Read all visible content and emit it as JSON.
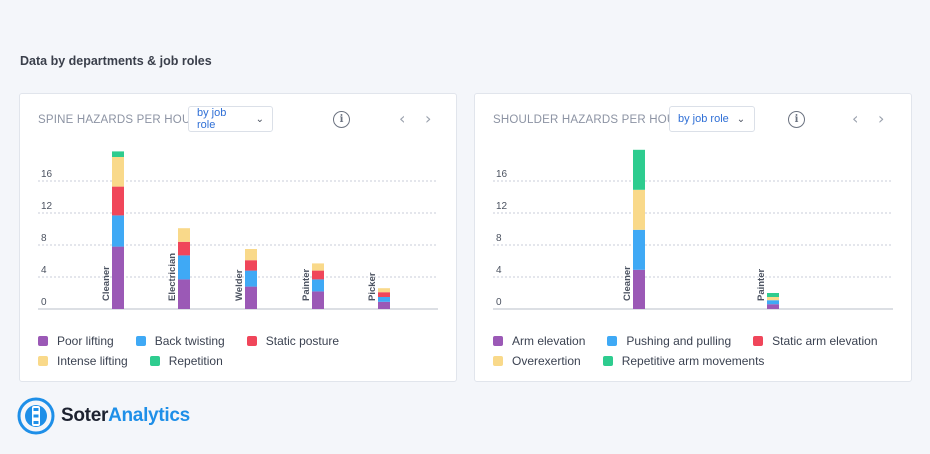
{
  "section": {
    "title": "Data by departments & job roles"
  },
  "panels": [
    {
      "title": "SPINE HAZARDS PER HOUR",
      "dropdown": "by job role",
      "info_icon": "info-icon",
      "prev_icon": "chevron-left-icon",
      "next_icon": "chevron-right-icon",
      "legend": [
        "Poor lifting",
        "Back twisting",
        "Static posture",
        "Intense lifting",
        "Repetition"
      ]
    },
    {
      "title": "SHOULDER HAZARDS PER HOUR",
      "dropdown": "by job role",
      "info_icon": "info-icon",
      "prev_icon": "chevron-left-icon",
      "next_icon": "chevron-right-icon",
      "legend": [
        "Arm elevation",
        "Pushing and pulling",
        "Static arm elevation",
        "Overexertion",
        "Repetitive arm movements"
      ]
    }
  ],
  "chart_data": [
    {
      "type": "bar",
      "stacked": true,
      "title": "SPINE HAZARDS PER HOUR",
      "categories": [
        "Cleaner",
        "Electrician",
        "Welder",
        "Painter",
        "Picker"
      ],
      "yticks": [
        0,
        4,
        8,
        12,
        16
      ],
      "ylim": [
        0,
        20
      ],
      "grid": true,
      "legend_position": "bottom",
      "series": [
        {
          "name": "Poor lifting",
          "color": "#9b59b6",
          "values": [
            7.8,
            3.7,
            2.8,
            2.2,
            0.9
          ]
        },
        {
          "name": "Back twisting",
          "color": "#3fa9f5",
          "values": [
            3.9,
            3.0,
            2.0,
            1.5,
            0.6
          ]
        },
        {
          "name": "Static posture",
          "color": "#f0465a",
          "values": [
            3.6,
            1.7,
            1.3,
            1.1,
            0.6
          ]
        },
        {
          "name": "Intense lifting",
          "color": "#f9d98a",
          "values": [
            3.7,
            1.7,
            1.4,
            0.9,
            0.5
          ]
        },
        {
          "name": "Repetition",
          "color": "#2ecc8f",
          "values": [
            0.7,
            0,
            0,
            0,
            0
          ]
        }
      ]
    },
    {
      "type": "bar",
      "stacked": true,
      "title": "SHOULDER HAZARDS PER HOUR",
      "categories": [
        "Cleaner",
        "Painter"
      ],
      "yticks": [
        0,
        4,
        8,
        12,
        16
      ],
      "ylim": [
        0,
        20
      ],
      "grid": true,
      "legend_position": "bottom",
      "series": [
        {
          "name": "Arm elevation",
          "color": "#9b59b6",
          "values": [
            4.9,
            0.6
          ]
        },
        {
          "name": "Pushing and pulling",
          "color": "#3fa9f5",
          "values": [
            5.0,
            0.5
          ]
        },
        {
          "name": "Static arm elevation",
          "color": "#f0465a",
          "values": [
            0,
            0
          ]
        },
        {
          "name": "Overexertion",
          "color": "#f9d98a",
          "values": [
            5.0,
            0.4
          ]
        },
        {
          "name": "Repetitive arm movements",
          "color": "#2ecc8f",
          "values": [
            5.0,
            0.5
          ]
        }
      ]
    }
  ],
  "logo": {
    "part1": "Soter",
    "part2": "Analytics",
    "icon": "soter-logo-icon"
  }
}
